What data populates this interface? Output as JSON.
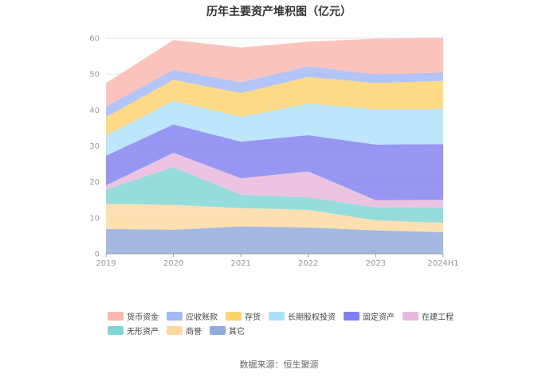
{
  "chart_data": {
    "type": "area",
    "title": "历年主要资产堆积图（亿元）",
    "categories": [
      "2019",
      "2020",
      "2021",
      "2022",
      "2023",
      "2024H1"
    ],
    "ylim": [
      0,
      60
    ],
    "yticks": [
      0,
      10,
      20,
      30,
      40,
      50,
      60
    ],
    "stacked": true,
    "grid": true,
    "legend_position": "bottom",
    "series": [
      {
        "name": "其它",
        "color": "#8faadc",
        "values": [
          6.9,
          6.7,
          7.6,
          7.3,
          6.5,
          6.0
        ]
      },
      {
        "name": "商誉",
        "color": "#fdd9a0",
        "values": [
          7.0,
          6.9,
          5.1,
          4.9,
          2.8,
          2.6
        ]
      },
      {
        "name": "无形资产",
        "color": "#7fd4d4",
        "values": [
          4.0,
          10.5,
          3.7,
          3.5,
          3.6,
          4.3
        ]
      },
      {
        "name": "在建工程",
        "color": "#e8b7dc",
        "values": [
          1.1,
          4.0,
          4.6,
          7.2,
          2.0,
          2.1
        ]
      },
      {
        "name": "固定资产",
        "color": "#8080f0",
        "values": [
          8.3,
          7.9,
          10.2,
          10.1,
          15.5,
          15.5
        ]
      },
      {
        "name": "长期股权投资",
        "color": "#aee0fa",
        "values": [
          5.6,
          6.6,
          6.9,
          8.8,
          9.8,
          9.8
        ]
      },
      {
        "name": "存货",
        "color": "#ffd26b",
        "values": [
          5.1,
          5.8,
          6.6,
          7.4,
          7.3,
          7.8
        ]
      },
      {
        "name": "应收账款",
        "color": "#a2b8f7",
        "values": [
          3.0,
          2.8,
          3.0,
          3.0,
          2.4,
          2.3
        ]
      },
      {
        "name": "货币资金",
        "color": "#fbb6ae",
        "values": [
          6.5,
          8.3,
          9.7,
          6.8,
          10.0,
          9.7
        ]
      }
    ],
    "legend_rows": [
      [
        "货币资金",
        "应收账款",
        "存货",
        "长期股权投资",
        "固定资产",
        "在建工程"
      ],
      [
        "无形资产",
        "商誉",
        "其它"
      ]
    ],
    "source": "数据来源：恒生聚源"
  }
}
